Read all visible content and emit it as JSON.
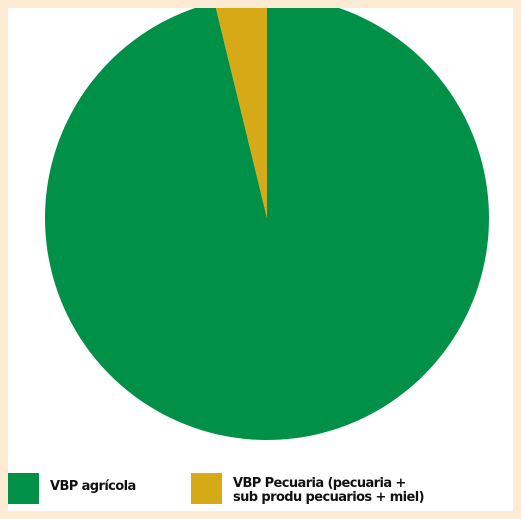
{
  "chart_data": {
    "type": "pie",
    "title": "",
    "series": [
      {
        "name": "VBP agrícola",
        "value": 96.2,
        "color": "#009048"
      },
      {
        "name": "VBP Pecuaria (pecuaria + sub produ pecuarios + miel)",
        "value": 3.8,
        "color": "#d6aa17"
      }
    ],
    "legend": {
      "placement": "bottom",
      "items": [
        {
          "label": "VBP agrícola",
          "color": "#009048"
        },
        {
          "label": "VBP Pecuaria (pecuaria +\nsub produ pecuarios + miel)",
          "color": "#d6aa17"
        }
      ]
    }
  },
  "colors": {
    "background": "#fdebd3",
    "panel": "#ffffff"
  }
}
